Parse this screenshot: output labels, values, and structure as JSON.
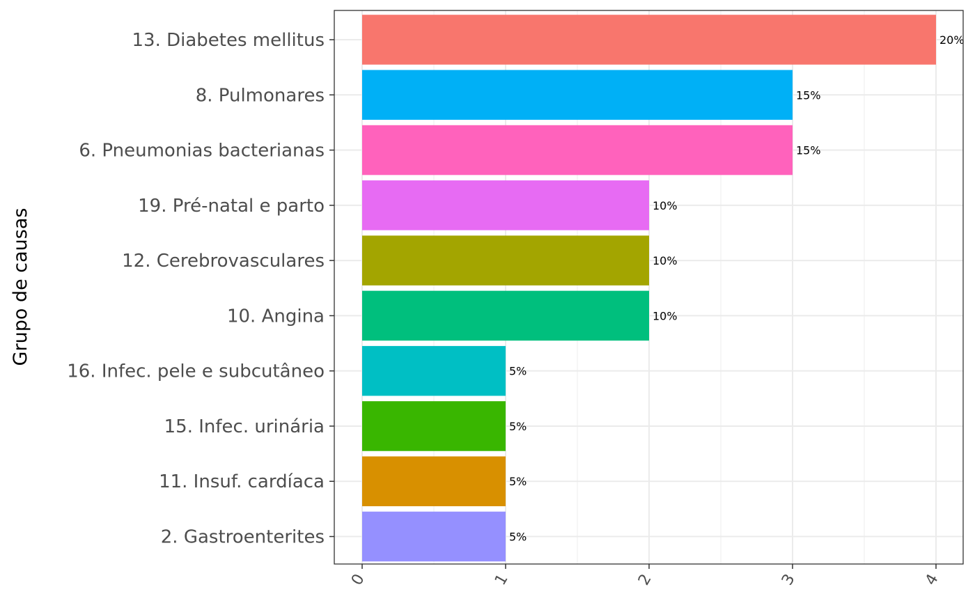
{
  "chart_data": {
    "type": "bar",
    "orientation": "horizontal",
    "title": "",
    "xlabel": "",
    "ylabel": "Grupo de causas",
    "xlim": [
      0,
      4
    ],
    "x_ticks": [
      0,
      1,
      2,
      3,
      4
    ],
    "tick_rotation": "45deg",
    "grid": true,
    "legend": "none",
    "categories": [
      "13. Diabetes mellitus",
      "8. Pulmonares",
      "6. Pneumonias bacterianas",
      "19. Pré-natal e parto",
      "12. Cerebrovasculares",
      "10. Angina",
      "16. Infec. pele e subcutâneo",
      "15. Infec. urinária",
      "11. Insuf. cardíaca",
      "2. Gastroenterites"
    ],
    "values": [
      4,
      3,
      3,
      2,
      2,
      2,
      1,
      1,
      1,
      1
    ],
    "labels": [
      "20%",
      "15%",
      "15%",
      "10%",
      "10%",
      "10%",
      "5%",
      "5%",
      "5%",
      "5%"
    ],
    "colors": [
      "#F8766D",
      "#00B0F6",
      "#FF62BC",
      "#E76BF3",
      "#A3A500",
      "#00BF7D",
      "#00BFC4",
      "#39B600",
      "#D89000",
      "#9590FF"
    ]
  }
}
